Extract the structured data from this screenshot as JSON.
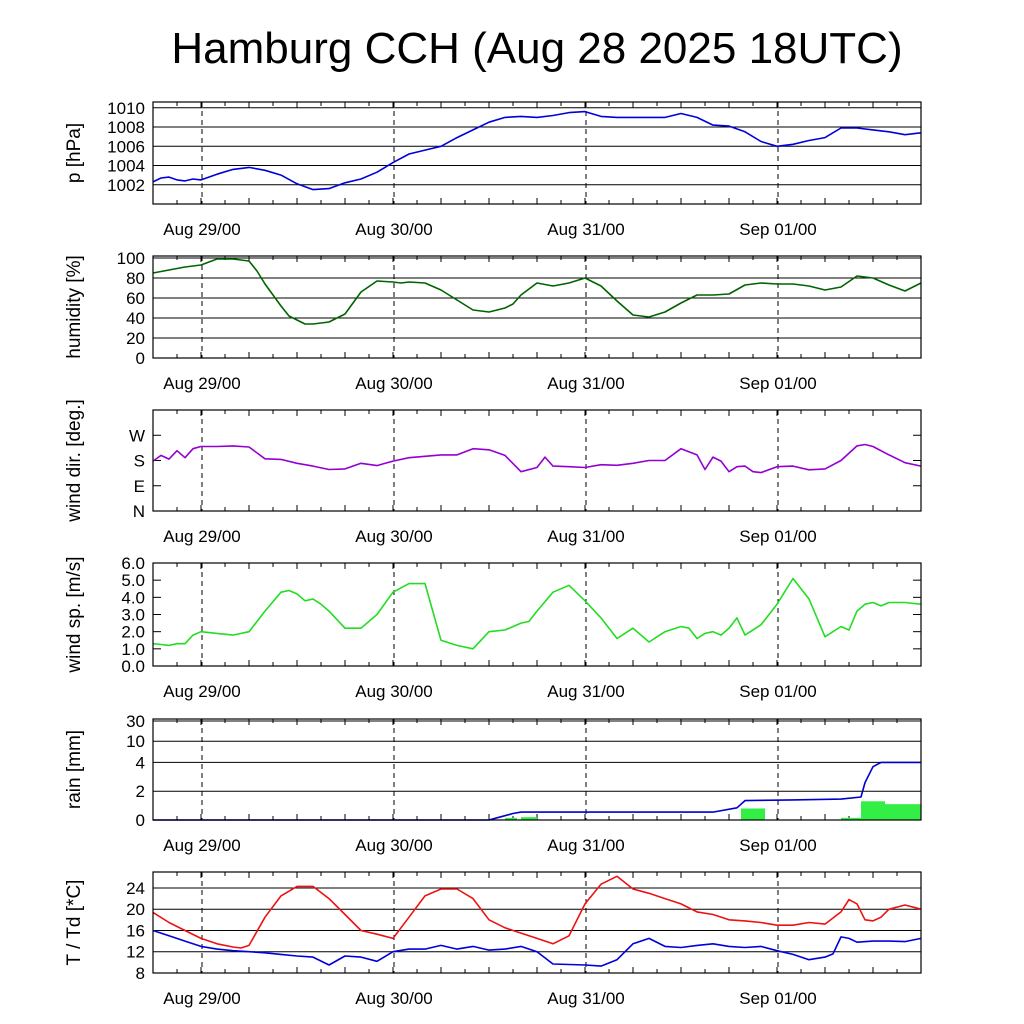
{
  "title": "Hamburg CCH (Aug 28 2025 18UTC)",
  "x_tick_labels": [
    "Aug 29/00",
    "Aug 30/00",
    "Aug 31/00",
    "Sep 01/00"
  ],
  "colors": {
    "pressure": "#0000dd",
    "humidity": "#006400",
    "wind_dir": "#9400d3",
    "wind_speed": "#22dd22",
    "rain_bars": "#33ee44",
    "rain_cumulative": "#0000cc",
    "temperature": "#ee1111",
    "dewpoint": "#0000dd"
  },
  "chart_data": [
    {
      "type": "line",
      "ylabel": "p [hPa]",
      "ylim": [
        1000,
        1010.6
      ],
      "yticks": [
        1002,
        1004,
        1006,
        1008,
        1010
      ],
      "ytick_labels": [
        "1002",
        "1004",
        "1006",
        "1008",
        "1010"
      ],
      "grid": true,
      "x_unit": "hours since Aug 28 18UTC",
      "xlim": [
        0,
        96
      ],
      "series": [
        {
          "color_key": "pressure",
          "x": [
            0,
            1,
            2,
            3,
            4,
            5,
            6,
            8,
            10,
            12,
            14,
            16,
            18,
            20,
            22,
            24,
            26,
            28,
            30,
            32,
            34,
            36,
            38,
            40,
            42,
            44,
            46,
            48,
            50,
            52,
            54,
            56,
            58,
            60,
            62,
            64,
            66,
            68,
            70,
            72,
            74,
            76,
            78,
            80,
            82,
            84,
            86,
            88,
            90,
            92,
            94,
            96
          ],
          "values": [
            1002.3,
            1002.7,
            1002.8,
            1002.5,
            1002.4,
            1002.6,
            1002.5,
            1003.1,
            1003.6,
            1003.8,
            1003.5,
            1003.0,
            1002.1,
            1001.5,
            1001.6,
            1002.2,
            1002.6,
            1003.3,
            1004.3,
            1005.2,
            1005.6,
            1006.0,
            1006.9,
            1007.7,
            1008.5,
            1009.0,
            1009.1,
            1009.0,
            1009.2,
            1009.5,
            1009.6,
            1009.1,
            1009.0,
            1009.0,
            1009.0,
            1009.0,
            1009.4,
            1009.0,
            1008.2,
            1008.1,
            1007.5,
            1006.5,
            1006.0,
            1006.2,
            1006.6,
            1006.9,
            1007.9,
            1007.9,
            1007.7,
            1007.5,
            1007.2,
            1007.4
          ]
        }
      ]
    },
    {
      "type": "line",
      "ylabel": "humidity [%]",
      "ylim": [
        0,
        102
      ],
      "yticks": [
        0,
        20,
        40,
        60,
        80,
        100
      ],
      "ytick_labels": [
        "0",
        "20",
        "40",
        "60",
        "80",
        "100"
      ],
      "grid": true,
      "x_unit": "hours since Aug 28 18UTC",
      "xlim": [
        0,
        96
      ],
      "series": [
        {
          "color_key": "humidity",
          "x": [
            0,
            2,
            4,
            6,
            8,
            10,
            12,
            13,
            14,
            15,
            16,
            17,
            18,
            19,
            20,
            22,
            24,
            26,
            28,
            30,
            31,
            32,
            34,
            36,
            38,
            40,
            42,
            44,
            45,
            46,
            48,
            50,
            52,
            54,
            56,
            58,
            60,
            62,
            64,
            66,
            68,
            70,
            72,
            74,
            76,
            78,
            80,
            82,
            84,
            86,
            88,
            90,
            92,
            94,
            96
          ],
          "values": [
            85,
            88,
            91,
            93,
            99,
            99,
            97,
            87,
            74,
            63,
            52,
            42,
            38,
            34,
            34,
            36,
            44,
            66,
            77,
            76,
            75,
            76,
            75,
            68,
            58,
            48,
            46,
            50,
            54,
            63,
            75,
            72,
            75,
            80,
            72,
            57,
            43,
            41,
            46,
            55,
            63,
            63,
            64,
            73,
            75,
            74,
            74,
            72,
            68,
            71,
            82,
            80,
            73,
            67,
            75
          ]
        }
      ]
    },
    {
      "type": "line",
      "ylabel": "wind dir. [deg.]",
      "ylim": [
        0,
        360
      ],
      "yticks": [
        0,
        90,
        180,
        270
      ],
      "ytick_labels": [
        "N",
        "E",
        "S",
        "W"
      ],
      "grid": false,
      "x_unit": "hours since Aug 28 18UTC",
      "xlim": [
        0,
        96
      ],
      "series": [
        {
          "color_key": "wind_dir",
          "x": [
            0,
            1,
            2,
            3,
            4,
            5,
            6,
            8,
            10,
            12,
            14,
            16,
            18,
            20,
            22,
            24,
            26,
            28,
            30,
            32,
            34,
            36,
            38,
            40,
            42,
            44,
            46,
            48,
            49,
            50,
            52,
            54,
            56,
            58,
            60,
            62,
            64,
            66,
            68,
            69,
            70,
            71,
            72,
            73,
            74,
            75,
            76,
            78,
            80,
            82,
            84,
            86,
            88,
            89,
            90,
            92,
            94,
            96
          ],
          "values": [
            178,
            198,
            185,
            215,
            190,
            222,
            230,
            230,
            232,
            228,
            186,
            184,
            170,
            160,
            148,
            150,
            170,
            162,
            178,
            190,
            195,
            200,
            200,
            222,
            218,
            198,
            140,
            155,
            192,
            160,
            158,
            155,
            165,
            163,
            170,
            180,
            180,
            222,
            200,
            148,
            192,
            178,
            140,
            158,
            160,
            140,
            137,
            158,
            160,
            147,
            150,
            180,
            232,
            237,
            230,
            200,
            172,
            160
          ]
        }
      ]
    },
    {
      "type": "line",
      "ylabel": "wind sp. [m/s]",
      "ylim": [
        0,
        6
      ],
      "yticks": [
        0,
        1,
        2,
        3,
        4,
        5,
        6
      ],
      "ytick_labels": [
        "0.0",
        "1.0",
        "2.0",
        "3.0",
        "4.0",
        "5.0",
        "6.0"
      ],
      "grid": false,
      "x_unit": "hours since Aug 28 18UTC",
      "xlim": [
        0,
        96
      ],
      "series": [
        {
          "color_key": "wind_speed",
          "x": [
            0,
            1,
            2,
            3,
            4,
            5,
            6,
            8,
            10,
            12,
            14,
            16,
            17,
            18,
            19,
            20,
            21,
            22,
            24,
            26,
            28,
            30,
            32,
            34,
            36,
            38,
            40,
            42,
            44,
            46,
            47,
            48,
            50,
            52,
            54,
            56,
            58,
            60,
            62,
            64,
            66,
            67,
            68,
            69,
            70,
            71,
            72,
            73,
            74,
            76,
            78,
            80,
            82,
            84,
            86,
            87,
            88,
            89,
            90,
            91,
            92,
            94,
            96
          ],
          "values": [
            1.3,
            1.25,
            1.2,
            1.3,
            1.3,
            1.8,
            2.0,
            1.9,
            1.8,
            2.0,
            3.2,
            4.3,
            4.4,
            4.2,
            3.8,
            3.9,
            3.6,
            3.2,
            2.2,
            2.2,
            3.0,
            4.3,
            4.8,
            4.8,
            1.5,
            1.2,
            1.0,
            2.0,
            2.1,
            2.5,
            2.6,
            3.2,
            4.3,
            4.7,
            3.8,
            2.8,
            1.6,
            2.2,
            1.4,
            2.0,
            2.3,
            2.2,
            1.6,
            1.9,
            2.0,
            1.8,
            2.2,
            2.8,
            1.8,
            2.4,
            3.6,
            5.1,
            3.9,
            1.7,
            2.3,
            2.1,
            3.2,
            3.6,
            3.7,
            3.5,
            3.7,
            3.7,
            3.6
          ]
        }
      ]
    },
    {
      "type": "bar",
      "ylabel": "rain [mm]",
      "yscale": "nonlinear",
      "yticks": [
        0,
        2,
        4,
        10,
        30
      ],
      "ytick_labels": [
        "0",
        "2",
        "4",
        "10",
        "30"
      ],
      "grid": true,
      "x_unit": "hours since Aug 28 18UTC",
      "xlim": [
        0,
        96
      ],
      "bars": [
        {
          "x": 44.0,
          "width": 1.5,
          "value": 0.15
        },
        {
          "x": 46.0,
          "width": 2.0,
          "value": 0.2
        },
        {
          "x": 73.5,
          "width": 3.0,
          "value": 0.8
        },
        {
          "x": 86.0,
          "width": 3.0,
          "value": 0.15
        },
        {
          "x": 88.5,
          "width": 3.0,
          "value": 1.3
        },
        {
          "x": 91.5,
          "width": 4.5,
          "value": 1.1
        }
      ],
      "series": [
        {
          "color_key": "rain_cumulative",
          "name": "",
          "x": [
            0,
            42,
            43,
            44,
            45,
            46,
            47,
            48,
            50,
            60,
            70,
            73,
            74,
            80,
            86,
            88.5,
            89,
            90,
            91,
            96
          ],
          "values": [
            0,
            0,
            0.15,
            0.3,
            0.45,
            0.55,
            0.55,
            0.55,
            0.55,
            0.55,
            0.55,
            0.85,
            1.35,
            1.4,
            1.45,
            1.6,
            2.6,
            3.7,
            4.0,
            4.0
          ]
        }
      ]
    },
    {
      "type": "line",
      "ylabel": "T / Td [*C]",
      "ylim": [
        8,
        27
      ],
      "yticks": [
        8,
        12,
        16,
        20,
        24
      ],
      "ytick_labels": [
        "8",
        "12",
        "16",
        "20",
        "24"
      ],
      "grid": true,
      "x_unit": "hours since Aug 28 18UTC",
      "xlim": [
        0,
        96
      ],
      "series": [
        {
          "color_key": "temperature",
          "x": [
            0,
            2,
            4,
            6,
            8,
            10,
            11,
            12,
            14,
            16,
            18,
            20,
            22,
            24,
            26,
            28,
            30,
            32,
            34,
            36,
            38,
            40,
            42,
            44,
            46,
            48,
            50,
            52,
            54,
            56,
            58,
            60,
            62,
            64,
            66,
            68,
            70,
            72,
            74,
            76,
            78,
            80,
            82,
            84,
            86,
            87,
            88,
            89,
            90,
            91,
            92,
            94,
            96
          ],
          "values": [
            19.4,
            17.5,
            16.0,
            14.5,
            13.5,
            12.9,
            12.7,
            13.2,
            18.5,
            22.5,
            24.3,
            24.3,
            22.0,
            19.0,
            16.0,
            15.3,
            14.5,
            18.5,
            22.5,
            23.8,
            23.8,
            22.0,
            18.0,
            16.5,
            15.5,
            14.5,
            13.5,
            15.0,
            21.0,
            24.7,
            26.2,
            23.8,
            23.0,
            22.0,
            21.0,
            19.5,
            19.0,
            18.0,
            17.8,
            17.5,
            17.0,
            17.0,
            17.5,
            17.2,
            19.5,
            21.8,
            21.0,
            18.0,
            17.8,
            18.5,
            20.0,
            20.8,
            20.0
          ]
        },
        {
          "color_key": "dewpoint",
          "x": [
            0,
            2,
            4,
            6,
            8,
            10,
            12,
            14,
            16,
            18,
            20,
            22,
            24,
            26,
            28,
            30,
            32,
            34,
            36,
            38,
            40,
            42,
            44,
            46,
            48,
            50,
            52,
            54,
            56,
            58,
            60,
            62,
            64,
            66,
            68,
            70,
            72,
            74,
            76,
            78,
            80,
            82,
            84,
            85,
            86,
            87,
            88,
            90,
            92,
            94,
            96
          ],
          "values": [
            16.0,
            15.0,
            14.0,
            13.0,
            12.5,
            12.2,
            12.0,
            11.8,
            11.5,
            11.2,
            11.0,
            9.5,
            11.2,
            11.0,
            10.2,
            12.0,
            12.5,
            12.5,
            13.2,
            12.5,
            13.0,
            12.3,
            12.5,
            13.0,
            12.0,
            9.7,
            9.6,
            9.5,
            9.3,
            10.5,
            13.5,
            14.5,
            13.0,
            12.8,
            13.2,
            13.5,
            13.0,
            12.8,
            13.0,
            12.2,
            11.5,
            10.5,
            11.0,
            11.6,
            14.8,
            14.5,
            13.8,
            14.0,
            14.0,
            13.9,
            14.5
          ]
        }
      ]
    }
  ]
}
